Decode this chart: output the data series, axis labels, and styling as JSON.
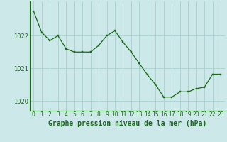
{
  "title": "Graphe pression niveau de la mer (hPa)",
  "x_values": [
    0,
    1,
    2,
    3,
    4,
    5,
    6,
    7,
    8,
    9,
    10,
    11,
    12,
    13,
    14,
    15,
    16,
    17,
    18,
    19,
    20,
    21,
    22,
    23
  ],
  "y_values": [
    1022.75,
    1022.1,
    1021.85,
    1022.0,
    1021.6,
    1021.5,
    1021.5,
    1021.5,
    1021.7,
    1022.0,
    1022.15,
    1021.8,
    1021.5,
    1021.15,
    1020.8,
    1020.5,
    1020.12,
    1020.12,
    1020.28,
    1020.28,
    1020.38,
    1020.42,
    1020.82,
    1020.82
  ],
  "line_color": "#1a6b1a",
  "marker_color": "#1a6b1a",
  "bg_color": "#cce8e8",
  "grid_color": "#aad0d0",
  "text_color": "#1a6b1a",
  "ylim": [
    1019.7,
    1023.05
  ],
  "yticks": [
    1020,
    1021,
    1022
  ],
  "title_fontsize": 7.0,
  "tick_fontsize": 6.0
}
